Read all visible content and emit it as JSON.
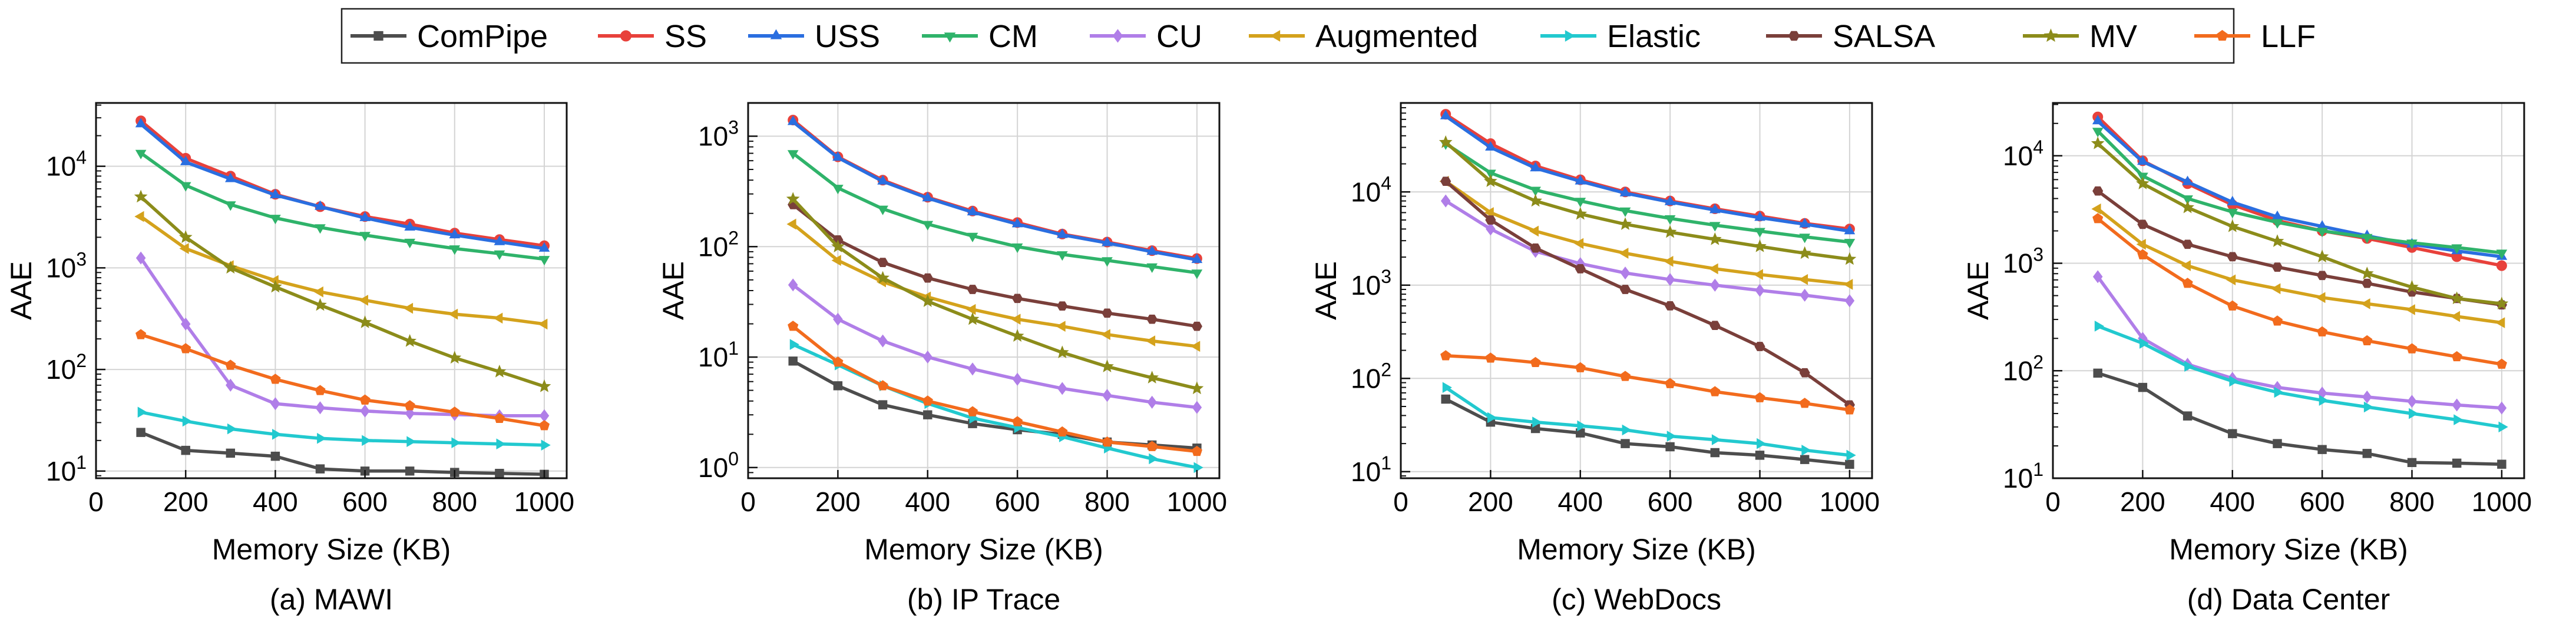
{
  "legend": {
    "entries": [
      {
        "name": "ComPipe",
        "color": "#4d4d4d",
        "marker": "square"
      },
      {
        "name": "SS",
        "color": "#e8413b",
        "marker": "circle"
      },
      {
        "name": "USS",
        "color": "#2a6ee0",
        "marker": "triangle-up"
      },
      {
        "name": "CM",
        "color": "#2fb36a",
        "marker": "triangle-down"
      },
      {
        "name": "CU",
        "color": "#b07ee8",
        "marker": "diamond"
      },
      {
        "name": "Augmented",
        "color": "#d4a21c",
        "marker": "triangle-left"
      },
      {
        "name": "Elastic",
        "color": "#22c9cf",
        "marker": "triangle-right"
      },
      {
        "name": "SALSA",
        "color": "#7a3f3a",
        "marker": "hexagon"
      },
      {
        "name": "MV",
        "color": "#8c8c1a",
        "marker": "star"
      },
      {
        "name": "LLF",
        "color": "#f26b1d",
        "marker": "pentagon"
      }
    ]
  },
  "chart_data": [
    {
      "type": "line",
      "title": "(a) MAWI",
      "xlabel": "Memory Size (KB)",
      "ylabel": "AAE",
      "yscale": "log",
      "xlim": [
        0,
        1050
      ],
      "ylim": [
        8.5,
        42000
      ],
      "xticks": [
        0,
        200,
        400,
        600,
        800,
        1000
      ],
      "yticks": [
        10,
        100,
        1000,
        10000
      ],
      "ytick_labels": [
        [
          "10",
          "1"
        ],
        [
          "10",
          "2"
        ],
        [
          "10",
          "3"
        ],
        [
          "10",
          "4"
        ]
      ],
      "x": [
        100,
        200,
        300,
        400,
        500,
        600,
        700,
        800,
        900,
        1000
      ],
      "series": [
        {
          "name": "ComPipe",
          "values": [
            24,
            16,
            15,
            14,
            10.5,
            10,
            10,
            9.7,
            9.5,
            9.3
          ]
        },
        {
          "name": "SS",
          "values": [
            28000,
            12000,
            8000,
            5300,
            4000,
            3200,
            2700,
            2200,
            1900,
            1650
          ]
        },
        {
          "name": "USS",
          "values": [
            26000,
            11000,
            7500,
            5200,
            4000,
            3100,
            2500,
            2100,
            1800,
            1550
          ]
        },
        {
          "name": "CM",
          "values": [
            13500,
            6500,
            4200,
            3100,
            2500,
            2100,
            1800,
            1550,
            1380,
            1220
          ]
        },
        {
          "name": "CU",
          "values": [
            1250,
            280,
            70,
            46,
            42,
            39,
            37,
            36,
            35,
            35
          ]
        },
        {
          "name": "Augmented",
          "values": [
            3200,
            1550,
            1050,
            750,
            580,
            480,
            400,
            350,
            320,
            280
          ]
        },
        {
          "name": "Elastic",
          "values": [
            38,
            31,
            26,
            23,
            21,
            20,
            19.5,
            19,
            18.5,
            18
          ]
        },
        {
          "name": "MV",
          "values": [
            5000,
            2000,
            1000,
            650,
            430,
            290,
            190,
            130,
            95,
            68
          ]
        },
        {
          "name": "LLF",
          "values": [
            220,
            160,
            110,
            80,
            62,
            50,
            44,
            38,
            33,
            28
          ]
        }
      ]
    },
    {
      "type": "line",
      "title": "(b) IP Trace",
      "xlabel": "Memory Size (KB)",
      "ylabel": "AAE",
      "yscale": "log",
      "xlim": [
        0,
        1050
      ],
      "ylim": [
        0.8,
        2000
      ],
      "xticks": [
        0,
        200,
        400,
        600,
        800,
        1000
      ],
      "yticks": [
        1,
        10,
        100,
        1000
      ],
      "ytick_labels": [
        [
          "10",
          "0"
        ],
        [
          "10",
          "1"
        ],
        [
          "10",
          "2"
        ],
        [
          "10",
          "3"
        ]
      ],
      "x": [
        100,
        200,
        300,
        400,
        500,
        600,
        700,
        800,
        900,
        1000
      ],
      "series": [
        {
          "name": "ComPipe",
          "values": [
            9.2,
            5.5,
            3.7,
            3.0,
            2.5,
            2.2,
            2.0,
            1.7,
            1.6,
            1.5
          ]
        },
        {
          "name": "SS",
          "values": [
            1400,
            650,
            400,
            280,
            210,
            165,
            130,
            110,
            92,
            78
          ]
        },
        {
          "name": "USS",
          "values": [
            1350,
            640,
            390,
            275,
            205,
            160,
            128,
            108,
            90,
            76
          ]
        },
        {
          "name": "CM",
          "values": [
            700,
            340,
            220,
            160,
            125,
            100,
            85,
            75,
            66,
            58
          ]
        },
        {
          "name": "CU",
          "values": [
            45,
            22,
            14,
            10,
            7.8,
            6.3,
            5.2,
            4.5,
            3.9,
            3.5
          ]
        },
        {
          "name": "Augmented",
          "values": [
            160,
            75,
            48,
            35,
            27,
            22,
            19,
            16,
            14,
            12.5
          ]
        },
        {
          "name": "Elastic",
          "values": [
            13,
            8.5,
            5.5,
            3.8,
            2.8,
            2.3,
            1.9,
            1.5,
            1.2,
            1.0
          ]
        },
        {
          "name": "SALSA",
          "values": [
            240,
            115,
            72,
            52,
            41,
            34,
            29,
            25,
            22,
            19
          ]
        },
        {
          "name": "MV",
          "values": [
            270,
            100,
            52,
            32,
            22,
            15.5,
            11,
            8.2,
            6.5,
            5.2
          ]
        },
        {
          "name": "LLF",
          "values": [
            19,
            9,
            5.5,
            4.0,
            3.2,
            2.6,
            2.1,
            1.7,
            1.55,
            1.4
          ]
        }
      ]
    },
    {
      "type": "line",
      "title": "(c) WebDocs",
      "xlabel": "Memory Size (KB)",
      "ylabel": "AAE",
      "yscale": "log",
      "xlim": [
        0,
        1050
      ],
      "ylim": [
        8.5,
        90000
      ],
      "xticks": [
        0,
        200,
        400,
        600,
        800,
        1000
      ],
      "yticks": [
        10,
        100,
        1000,
        10000
      ],
      "ytick_labels": [
        [
          "10",
          "1"
        ],
        [
          "10",
          "2"
        ],
        [
          "10",
          "3"
        ],
        [
          "10",
          "4"
        ]
      ],
      "x": [
        100,
        200,
        300,
        400,
        500,
        600,
        700,
        800,
        900,
        1000
      ],
      "series": [
        {
          "name": "ComPipe",
          "values": [
            60,
            34,
            29,
            26,
            20,
            18.5,
            16,
            15,
            13.5,
            12
          ]
        },
        {
          "name": "SS",
          "values": [
            68000,
            33000,
            19000,
            13500,
            10000,
            8000,
            6600,
            5500,
            4600,
            4000
          ]
        },
        {
          "name": "USS",
          "values": [
            65000,
            30000,
            18000,
            13000,
            9700,
            7800,
            6400,
            5300,
            4500,
            3800
          ]
        },
        {
          "name": "CM",
          "values": [
            33000,
            16000,
            10500,
            8000,
            6300,
            5200,
            4400,
            3800,
            3300,
            2900
          ]
        },
        {
          "name": "CU",
          "values": [
            8000,
            4000,
            2300,
            1700,
            1350,
            1150,
            1000,
            880,
            780,
            680
          ]
        },
        {
          "name": "Augmented",
          "values": [
            13000,
            6000,
            3800,
            2800,
            2200,
            1800,
            1500,
            1300,
            1150,
            1020
          ]
        },
        {
          "name": "Elastic",
          "values": [
            80,
            38,
            34,
            31,
            28,
            24,
            22,
            20,
            17,
            15
          ]
        },
        {
          "name": "SALSA",
          "values": [
            13000,
            5000,
            2500,
            1500,
            900,
            600,
            370,
            220,
            115,
            52
          ]
        },
        {
          "name": "MV",
          "values": [
            34000,
            13000,
            8000,
            5800,
            4500,
            3700,
            3100,
            2600,
            2200,
            1900
          ]
        },
        {
          "name": "LLF",
          "values": [
            175,
            165,
            148,
            130,
            105,
            88,
            72,
            62,
            54,
            46
          ]
        }
      ]
    },
    {
      "type": "line",
      "title": "(d) Data Center",
      "xlabel": "Memory Size (KB)",
      "ylabel": "AAE",
      "yscale": "log",
      "xlim": [
        0,
        1050
      ],
      "ylim": [
        10,
        31000
      ],
      "xticks": [
        0,
        200,
        400,
        600,
        800,
        1000
      ],
      "yticks": [
        10,
        100,
        1000,
        10000
      ],
      "ytick_labels": [
        [
          "10",
          "1"
        ],
        [
          "10",
          "2"
        ],
        [
          "10",
          "3"
        ],
        [
          "10",
          "4"
        ]
      ],
      "x": [
        100,
        200,
        300,
        400,
        500,
        600,
        700,
        800,
        900,
        1000
      ],
      "series": [
        {
          "name": "ComPipe",
          "values": [
            95,
            70,
            38,
            26,
            21,
            18.5,
            17,
            14,
            13.8,
            13.5
          ]
        },
        {
          "name": "SS",
          "values": [
            23000,
            9000,
            5500,
            3500,
            2500,
            2000,
            1700,
            1400,
            1150,
            950
          ]
        },
        {
          "name": "USS",
          "values": [
            21000,
            8800,
            5700,
            3700,
            2700,
            2200,
            1800,
            1500,
            1300,
            1150
          ]
        },
        {
          "name": "CM",
          "values": [
            17000,
            6500,
            4000,
            3000,
            2400,
            2000,
            1750,
            1550,
            1400,
            1250
          ]
        },
        {
          "name": "CU",
          "values": [
            750,
            200,
            115,
            85,
            70,
            62,
            57,
            52,
            48,
            45
          ]
        },
        {
          "name": "Augmented",
          "values": [
            3200,
            1500,
            950,
            700,
            580,
            480,
            420,
            370,
            320,
            280
          ]
        },
        {
          "name": "Elastic",
          "values": [
            260,
            180,
            110,
            80,
            63,
            53,
            46,
            40,
            35,
            30
          ]
        },
        {
          "name": "SALSA",
          "values": [
            4700,
            2300,
            1500,
            1150,
            920,
            770,
            650,
            540,
            470,
            410
          ]
        },
        {
          "name": "MV",
          "values": [
            13000,
            5500,
            3300,
            2200,
            1600,
            1150,
            800,
            600,
            470,
            420
          ]
        },
        {
          "name": "LLF",
          "values": [
            2600,
            1200,
            650,
            400,
            290,
            230,
            190,
            160,
            135,
            115
          ]
        }
      ]
    }
  ]
}
